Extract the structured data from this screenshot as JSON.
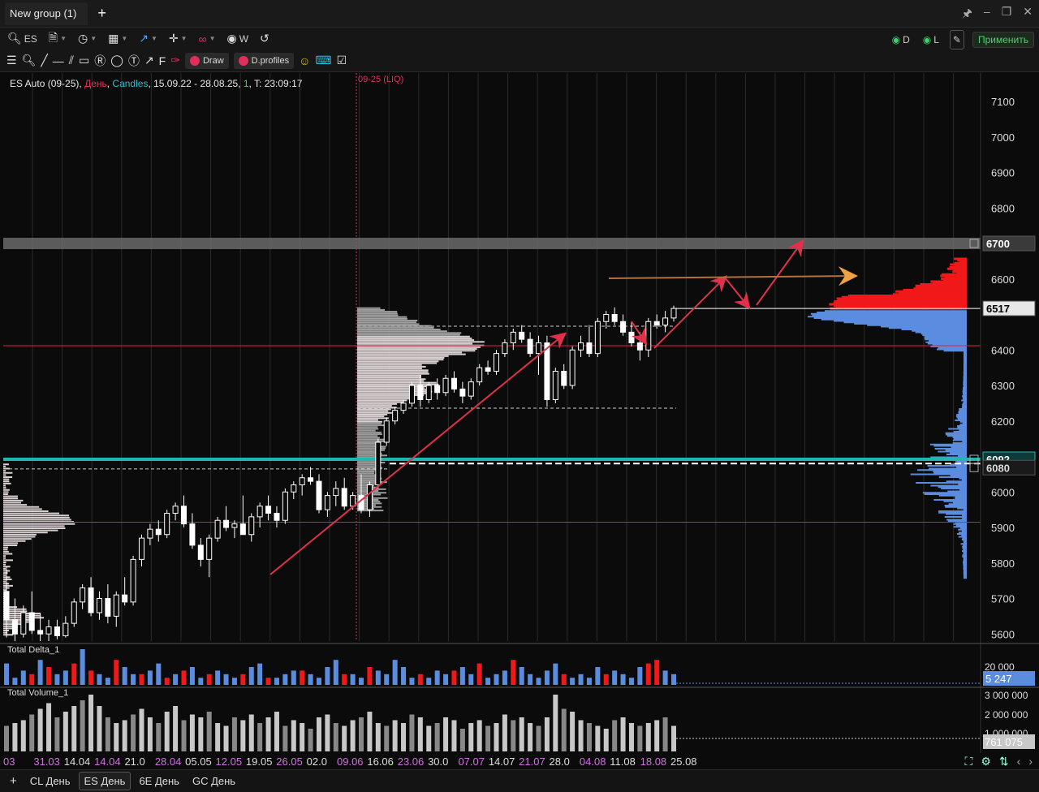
{
  "window": {
    "tab_title": "New group (1)",
    "add_tab": "+"
  },
  "toolbar": {
    "symbol": "ES",
    "timeframe_label": "W",
    "indicators": [
      {
        "name": "D",
        "color": "#3fd06a"
      },
      {
        "name": "L",
        "color": "#3fd06a"
      }
    ],
    "apply_label": "Применить"
  },
  "toolbar2": {
    "draw_label": "Draw",
    "dprofiles_label": "D.profiles"
  },
  "chart_header": {
    "instrument": "ES Auto (09-25)",
    "period": "День",
    "type": "Candles",
    "range": "15.09.22 - 28.08.25",
    "mult": "1",
    "time": "T: 23:09:17"
  },
  "chart_data": {
    "type": "candlestick",
    "instrument": "ES Auto (09-25)",
    "period": "День",
    "y_ticks": [
      7100,
      7000,
      6900,
      6800,
      6600,
      6400,
      6300,
      6200,
      6000,
      5900,
      5800,
      5700,
      5600
    ],
    "ylim": [
      5580,
      7180
    ],
    "expiry_marker": "09-25 (LIQ)",
    "price_labels": [
      {
        "value": 6700,
        "label": "6700",
        "style": "band"
      },
      {
        "value": 6517,
        "label": "6517",
        "style": "last"
      },
      {
        "value": 6092,
        "label": "6092",
        "style": "teal"
      },
      {
        "value": 6080,
        "label": "6080",
        "style": "dashed"
      }
    ],
    "horizontal_lines": [
      {
        "value": 6412,
        "color": "#e02040"
      },
      {
        "value": 5915,
        "color": "#e02040"
      }
    ],
    "x_labels": [
      {
        "label": "03",
        "hl": true
      },
      {
        "label": "31.03",
        "hl": true
      },
      {
        "label": "14.04",
        "hl": false
      },
      {
        "label": "14.04",
        "hl": true
      },
      {
        "label": "21.0",
        "hl": false
      },
      {
        "label": "28.04",
        "hl": true
      },
      {
        "label": "05.05",
        "hl": false
      },
      {
        "label": "12.05",
        "hl": true
      },
      {
        "label": "19.05",
        "hl": false
      },
      {
        "label": "26.05",
        "hl": true
      },
      {
        "label": "02.0",
        "hl": false
      },
      {
        "label": "09.06",
        "hl": true
      },
      {
        "label": "16.06",
        "hl": false
      },
      {
        "label": "23.06",
        "hl": true
      },
      {
        "label": "30.0",
        "hl": false
      },
      {
        "label": "07.07",
        "hl": true
      },
      {
        "label": "14.07",
        "hl": false
      },
      {
        "label": "21.07",
        "hl": true
      },
      {
        "label": "28.0",
        "hl": false
      },
      {
        "label": "04.08",
        "hl": true
      },
      {
        "label": "11.08",
        "hl": false
      },
      {
        "label": "18.08",
        "hl": true
      },
      {
        "label": "25.08",
        "hl": false
      }
    ],
    "candles": [
      {
        "o": 5720,
        "h": 5790,
        "l": 5590,
        "c": 5640
      },
      {
        "o": 5640,
        "h": 5700,
        "l": 5580,
        "c": 5600
      },
      {
        "o": 5600,
        "h": 5680,
        "l": 5590,
        "c": 5660
      },
      {
        "o": 5660,
        "h": 5720,
        "l": 5600,
        "c": 5610
      },
      {
        "o": 5610,
        "h": 5660,
        "l": 5580,
        "c": 5600
      },
      {
        "o": 5600,
        "h": 5640,
        "l": 5580,
        "c": 5620
      },
      {
        "o": 5620,
        "h": 5640,
        "l": 5585,
        "c": 5595
      },
      {
        "o": 5595,
        "h": 5650,
        "l": 5590,
        "c": 5630
      },
      {
        "o": 5630,
        "h": 5700,
        "l": 5620,
        "c": 5690
      },
      {
        "o": 5690,
        "h": 5740,
        "l": 5670,
        "c": 5730
      },
      {
        "o": 5730,
        "h": 5760,
        "l": 5650,
        "c": 5660
      },
      {
        "o": 5660,
        "h": 5720,
        "l": 5640,
        "c": 5700
      },
      {
        "o": 5700,
        "h": 5740,
        "l": 5630,
        "c": 5650
      },
      {
        "o": 5650,
        "h": 5720,
        "l": 5620,
        "c": 5710
      },
      {
        "o": 5710,
        "h": 5760,
        "l": 5680,
        "c": 5690
      },
      {
        "o": 5690,
        "h": 5820,
        "l": 5680,
        "c": 5810
      },
      {
        "o": 5810,
        "h": 5880,
        "l": 5790,
        "c": 5870
      },
      {
        "o": 5870,
        "h": 5910,
        "l": 5850,
        "c": 5895
      },
      {
        "o": 5895,
        "h": 5920,
        "l": 5860,
        "c": 5880
      },
      {
        "o": 5880,
        "h": 5950,
        "l": 5870,
        "c": 5940
      },
      {
        "o": 5940,
        "h": 5970,
        "l": 5920,
        "c": 5960
      },
      {
        "o": 5960,
        "h": 5990,
        "l": 5900,
        "c": 5910
      },
      {
        "o": 5910,
        "h": 5940,
        "l": 5840,
        "c": 5850
      },
      {
        "o": 5850,
        "h": 5870,
        "l": 5790,
        "c": 5810
      },
      {
        "o": 5810,
        "h": 5880,
        "l": 5760,
        "c": 5870
      },
      {
        "o": 5870,
        "h": 5930,
        "l": 5860,
        "c": 5920
      },
      {
        "o": 5920,
        "h": 5960,
        "l": 5890,
        "c": 5900
      },
      {
        "o": 5900,
        "h": 5920,
        "l": 5870,
        "c": 5910
      },
      {
        "o": 5910,
        "h": 5990,
        "l": 5890,
        "c": 5880
      },
      {
        "o": 5880,
        "h": 5940,
        "l": 5860,
        "c": 5930
      },
      {
        "o": 5930,
        "h": 5970,
        "l": 5900,
        "c": 5960
      },
      {
        "o": 5960,
        "h": 5990,
        "l": 5920,
        "c": 5940
      },
      {
        "o": 5940,
        "h": 5960,
        "l": 5900,
        "c": 5920
      },
      {
        "o": 5920,
        "h": 6010,
        "l": 5910,
        "c": 6000
      },
      {
        "o": 6000,
        "h": 6030,
        "l": 5980,
        "c": 6020
      },
      {
        "o": 6020,
        "h": 6050,
        "l": 5990,
        "c": 6040
      },
      {
        "o": 6040,
        "h": 6070,
        "l": 6020,
        "c": 6030
      },
      {
        "o": 6030,
        "h": 6050,
        "l": 5940,
        "c": 5950
      },
      {
        "o": 5950,
        "h": 6000,
        "l": 5930,
        "c": 5990
      },
      {
        "o": 5990,
        "h": 6030,
        "l": 5960,
        "c": 6010
      },
      {
        "o": 6010,
        "h": 6040,
        "l": 5950,
        "c": 5960
      },
      {
        "o": 5960,
        "h": 6000,
        "l": 5950,
        "c": 5990
      },
      {
        "o": 5990,
        "h": 6050,
        "l": 5940,
        "c": 5950
      },
      {
        "o": 5950,
        "h": 6030,
        "l": 5930,
        "c": 6020
      },
      {
        "o": 6020,
        "h": 6150,
        "l": 6010,
        "c": 6140
      },
      {
        "o": 6140,
        "h": 6210,
        "l": 6130,
        "c": 6200
      },
      {
        "o": 6200,
        "h": 6240,
        "l": 6190,
        "c": 6230
      },
      {
        "o": 6230,
        "h": 6260,
        "l": 6220,
        "c": 6250
      },
      {
        "o": 6250,
        "h": 6310,
        "l": 6240,
        "c": 6300
      },
      {
        "o": 6300,
        "h": 6330,
        "l": 6240,
        "c": 6260
      },
      {
        "o": 6260,
        "h": 6310,
        "l": 6250,
        "c": 6300
      },
      {
        "o": 6300,
        "h": 6320,
        "l": 6260,
        "c": 6280
      },
      {
        "o": 6280,
        "h": 6330,
        "l": 6270,
        "c": 6320
      },
      {
        "o": 6320,
        "h": 6340,
        "l": 6280,
        "c": 6290
      },
      {
        "o": 6290,
        "h": 6310,
        "l": 6250,
        "c": 6270
      },
      {
        "o": 6270,
        "h": 6320,
        "l": 6260,
        "c": 6310
      },
      {
        "o": 6310,
        "h": 6360,
        "l": 6300,
        "c": 6350
      },
      {
        "o": 6350,
        "h": 6370,
        "l": 6330,
        "c": 6340
      },
      {
        "o": 6340,
        "h": 6400,
        "l": 6330,
        "c": 6390
      },
      {
        "o": 6390,
        "h": 6430,
        "l": 6380,
        "c": 6420
      },
      {
        "o": 6420,
        "h": 6460,
        "l": 6400,
        "c": 6450
      },
      {
        "o": 6450,
        "h": 6470,
        "l": 6420,
        "c": 6430
      },
      {
        "o": 6430,
        "h": 6450,
        "l": 6380,
        "c": 6390
      },
      {
        "o": 6390,
        "h": 6440,
        "l": 6330,
        "c": 6420
      },
      {
        "o": 6420,
        "h": 6440,
        "l": 6240,
        "c": 6260
      },
      {
        "o": 6260,
        "h": 6350,
        "l": 6250,
        "c": 6340
      },
      {
        "o": 6340,
        "h": 6360,
        "l": 6290,
        "c": 6300
      },
      {
        "o": 6300,
        "h": 6410,
        "l": 6290,
        "c": 6400
      },
      {
        "o": 6400,
        "h": 6440,
        "l": 6380,
        "c": 6420
      },
      {
        "o": 6420,
        "h": 6470,
        "l": 6380,
        "c": 6390
      },
      {
        "o": 6390,
        "h": 6490,
        "l": 6380,
        "c": 6480
      },
      {
        "o": 6480,
        "h": 6510,
        "l": 6460,
        "c": 6500
      },
      {
        "o": 6500,
        "h": 6520,
        "l": 6470,
        "c": 6480
      },
      {
        "o": 6480,
        "h": 6500,
        "l": 6440,
        "c": 6450
      },
      {
        "o": 6450,
        "h": 6480,
        "l": 6410,
        "c": 6420
      },
      {
        "o": 6420,
        "h": 6450,
        "l": 6370,
        "c": 6400
      },
      {
        "o": 6400,
        "h": 6490,
        "l": 6380,
        "c": 6480
      },
      {
        "o": 6480,
        "h": 6500,
        "l": 6460,
        "c": 6470
      },
      {
        "o": 6470,
        "h": 6510,
        "l": 6450,
        "c": 6490
      },
      {
        "o": 6490,
        "h": 6525,
        "l": 6480,
        "c": 6517
      }
    ],
    "delta_values": [
      12,
      4,
      8,
      -6,
      14,
      -10,
      6,
      8,
      -12,
      20,
      -8,
      6,
      4,
      -14,
      10,
      6,
      -6,
      8,
      12,
      -4,
      6,
      -8,
      10,
      4,
      -6,
      8,
      6,
      4,
      -6,
      10,
      12,
      -4,
      4,
      6,
      8,
      -8,
      6,
      4,
      10,
      14,
      -6,
      6,
      4,
      -10,
      8,
      6,
      14,
      10,
      4,
      -6,
      4,
      8,
      6,
      -8,
      10,
      6,
      -12,
      4,
      6,
      8,
      -14,
      10,
      6,
      4,
      8,
      12,
      -6,
      4,
      6,
      4,
      10,
      -6,
      8,
      6,
      4,
      10,
      -12,
      -14,
      8,
      6
    ],
    "delta_axis": {
      "tick": "20 000",
      "last": "5 247"
    },
    "volume_values": [
      9,
      10,
      11,
      13,
      15,
      17,
      12,
      14,
      16,
      18,
      20,
      16,
      12,
      10,
      11,
      13,
      15,
      12,
      10,
      14,
      16,
      11,
      13,
      12,
      14,
      10,
      9,
      12,
      11,
      13,
      10,
      12,
      14,
      9,
      11,
      10,
      8,
      12,
      13,
      10,
      9,
      11,
      12,
      14,
      10,
      9,
      11,
      10,
      13,
      12,
      9,
      10,
      12,
      11,
      8,
      10,
      11,
      9,
      10,
      13,
      11,
      12,
      10,
      9,
      12,
      20,
      15,
      14,
      11,
      10,
      9,
      8,
      11,
      12,
      10,
      9,
      10,
      11,
      12,
      9
    ],
    "volume_axis": {
      "ticks": [
        "3 000 000",
        "2 000 000",
        "1 000 000"
      ],
      "last": "761 075"
    },
    "panels": [
      "Total Delta_1",
      "Total Volume_1"
    ]
  },
  "bottom_tabs": [
    {
      "label": "CL День",
      "active": false
    },
    {
      "label": "ES День",
      "active": true
    },
    {
      "label": "6E День",
      "active": false
    },
    {
      "label": "GC День",
      "active": false
    }
  ]
}
